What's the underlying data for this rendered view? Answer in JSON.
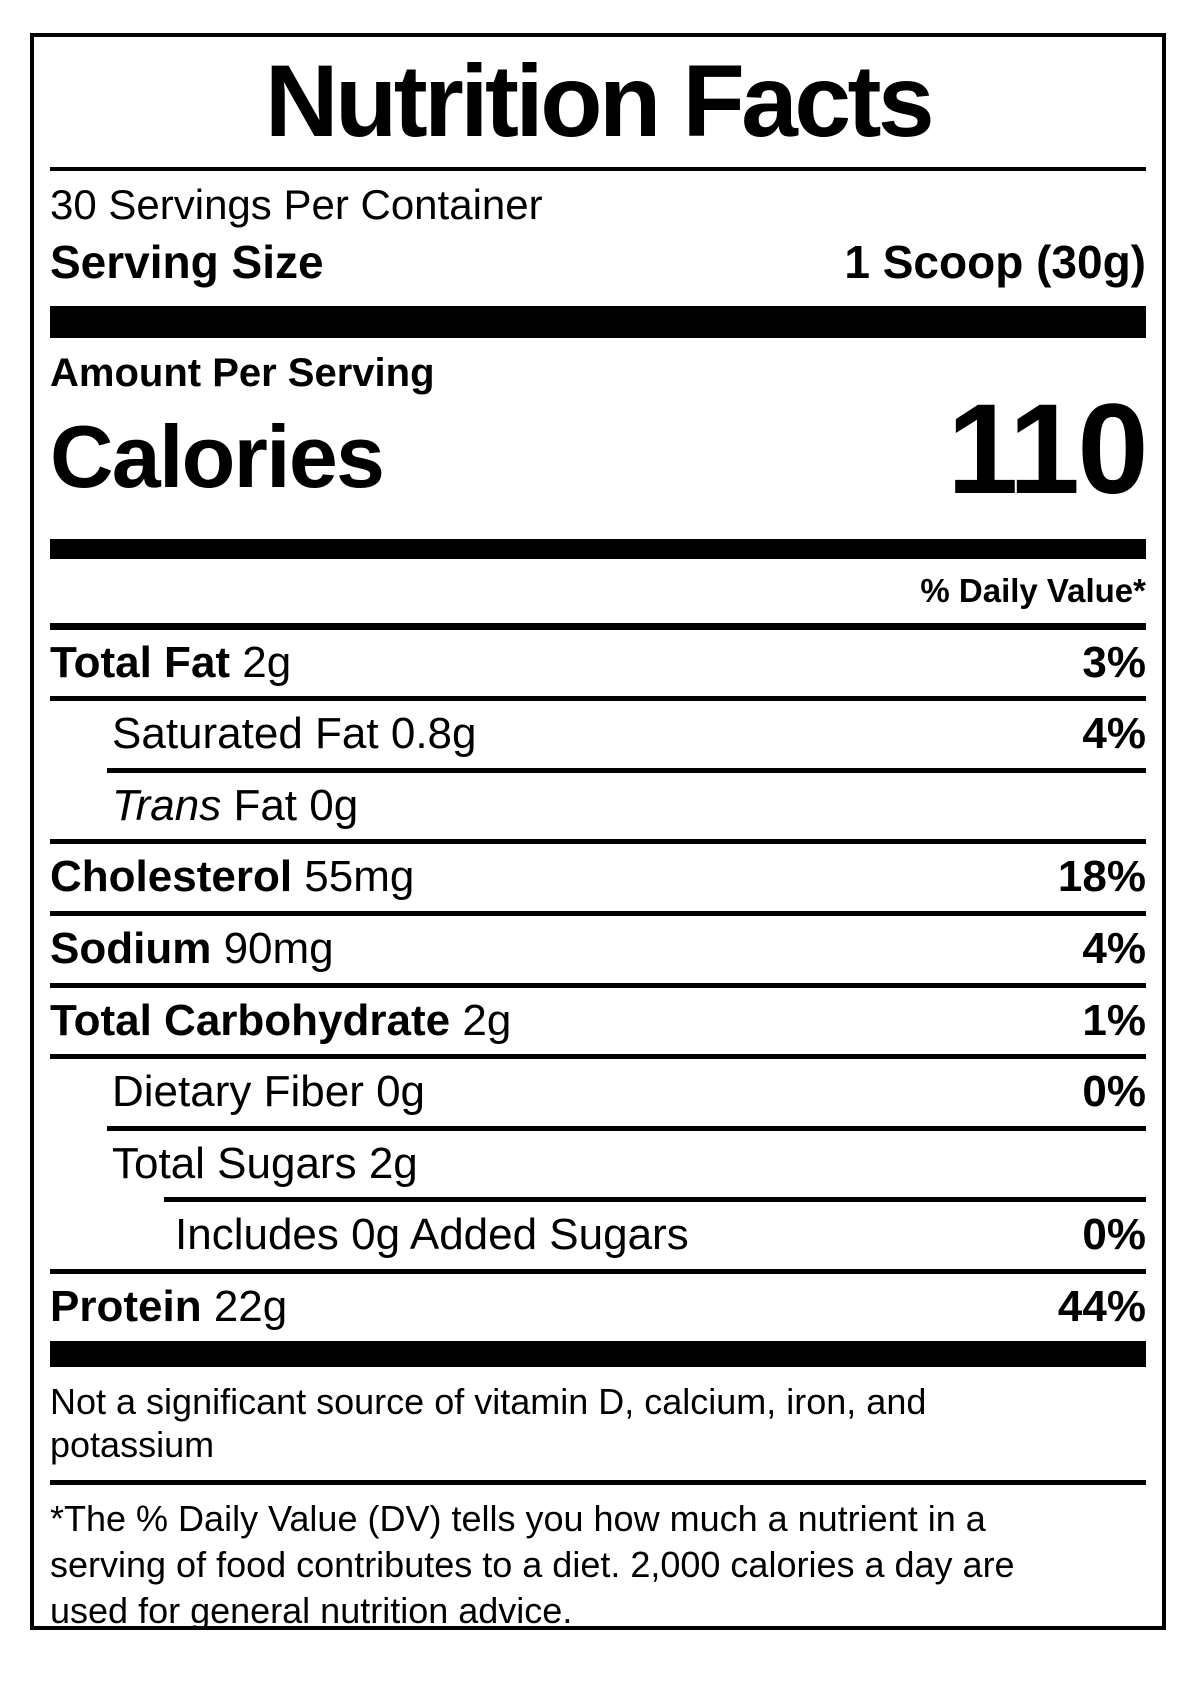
{
  "label": {
    "title": "Nutrition Facts",
    "servings_per_container": "30 Servings Per Container",
    "serving_size": {
      "label": "Serving Size",
      "value": "1 Scoop (30g)"
    },
    "amount_per_serving": "Amount Per Serving",
    "calories": {
      "label": "Calories",
      "value": "110"
    },
    "daily_value_header": "% Daily Value*",
    "nutrients": {
      "total_fat": {
        "name": "Total Fat",
        "amount": "2g",
        "dv": "3%"
      },
      "saturated_fat": {
        "name": "Saturated Fat",
        "amount": "0.8g",
        "dv": "4%"
      },
      "trans_fat": {
        "name_italic": "Trans",
        "name_rest": "Fat",
        "amount": "0g"
      },
      "cholesterol": {
        "name": "Cholesterol",
        "amount": "55mg",
        "dv": "18%"
      },
      "sodium": {
        "name": "Sodium",
        "amount": "90mg",
        "dv": "4%"
      },
      "total_carbohydrate": {
        "name": "Total Carbohydrate",
        "amount": "2g",
        "dv": "1%"
      },
      "dietary_fiber": {
        "name": "Dietary Fiber",
        "amount": "0g",
        "dv": "0%"
      },
      "total_sugars": {
        "name": "Total Sugars",
        "amount": "2g"
      },
      "added_sugars": {
        "name": "Includes 0g Added Sugars",
        "dv": "0%"
      },
      "protein": {
        "name": "Protein",
        "amount": "22g",
        "dv": "44%"
      }
    },
    "not_significant_lines": [
      "Not a significant source of vitamin D, calcium, iron, and",
      "potassium"
    ],
    "footnote_lines": [
      "*The % Daily Value (DV) tells you how much a nutrient in a",
      "serving of food contributes to a diet. 2,000 calories a day are",
      "used for general nutrition advice."
    ]
  },
  "colors": {
    "ink": "#000000",
    "background": "#ffffff"
  }
}
